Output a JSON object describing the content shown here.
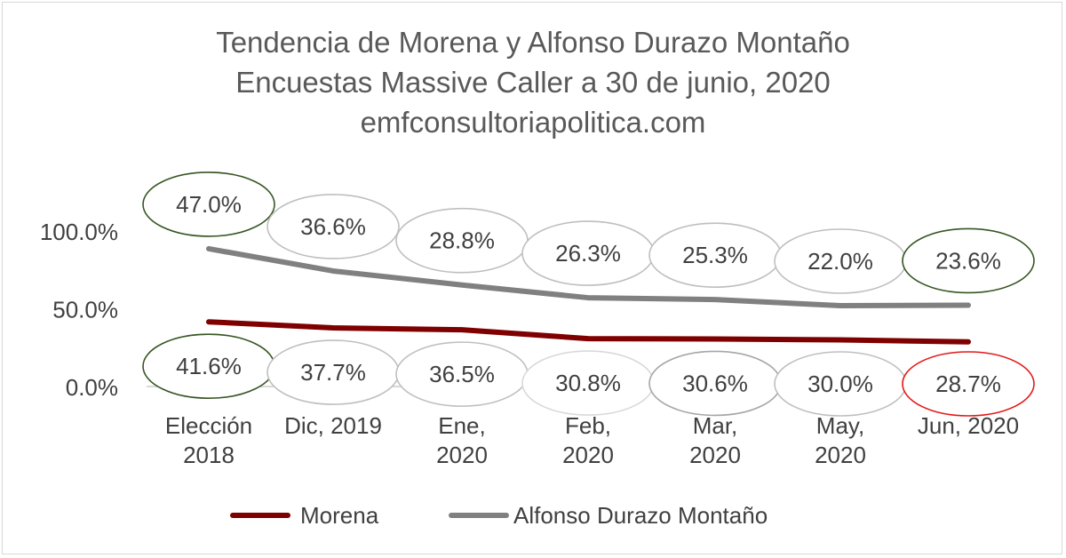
{
  "chart_data": {
    "type": "line",
    "stacked": true,
    "title": [
      "Tendencia de Morena y Alfonso Durazo Montaño",
      "Encuestas Massive Caller a 30 de junio, 2020",
      "emfconsultoriapolitica.com"
    ],
    "categories": [
      [
        "Elección",
        "2018"
      ],
      [
        "Dic, 2019"
      ],
      [
        "Ene,",
        "2020"
      ],
      [
        "Feb,",
        "2020"
      ],
      [
        "Mar,",
        "2020"
      ],
      [
        "May,",
        "2020"
      ],
      [
        "Jun, 2020"
      ]
    ],
    "yticks": [
      "0.0%",
      "50.0%",
      "100.0%"
    ],
    "ylim": [
      0,
      100
    ],
    "grid": false,
    "legend_position": "bottom",
    "series": [
      {
        "name": "Morena",
        "color": "#7f0000",
        "values": [
          41.6,
          37.7,
          36.5,
          30.8,
          30.6,
          30.0,
          28.7
        ],
        "labels": [
          "41.6%",
          "37.7%",
          "36.5%",
          "30.8%",
          "30.6%",
          "30.0%",
          "28.7%"
        ],
        "label_borders": [
          "#375623",
          "#bfbfbf",
          "#bfbfbf",
          "#d9d9d9",
          "#a6a6a6",
          "#bfbfbf",
          "#e31a1c"
        ]
      },
      {
        "name": "Alfonso Durazo Montaño",
        "color": "#808080",
        "values": [
          47.0,
          36.6,
          28.8,
          26.3,
          25.3,
          22.0,
          23.6
        ],
        "labels": [
          "47.0%",
          "36.6%",
          "28.8%",
          "26.3%",
          "25.3%",
          "22.0%",
          "23.6%"
        ],
        "label_borders": [
          "#375623",
          "#bfbfbf",
          "#bfbfbf",
          "#bfbfbf",
          "#bfbfbf",
          "#bfbfbf",
          "#375623"
        ]
      }
    ]
  }
}
